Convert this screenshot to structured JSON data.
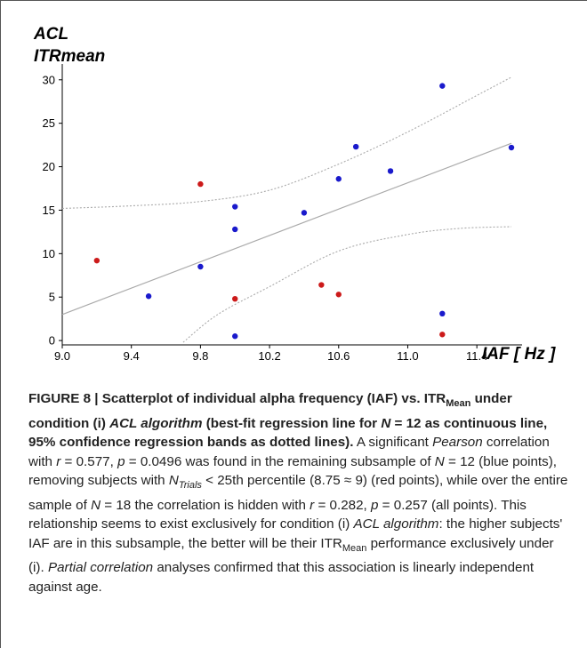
{
  "chart_data": {
    "type": "scatter",
    "title_lines": [
      "ACL",
      "ITRmean"
    ],
    "xlabel": "IAF [ Hz ]",
    "ylabel": "",
    "xlim": [
      9.0,
      11.6
    ],
    "ylim": [
      -0.5,
      31
    ],
    "xticks": [
      "9.0",
      "9.4",
      "9.8",
      "10.2",
      "10.6",
      "11.0",
      "11.4"
    ],
    "xtick_values": [
      9.0,
      9.4,
      9.8,
      10.2,
      10.6,
      11.0,
      11.4
    ],
    "yticks": [
      "0",
      "5",
      "10",
      "15",
      "20",
      "25",
      "30"
    ],
    "ytick_values": [
      0,
      5,
      10,
      15,
      20,
      25,
      30
    ],
    "grid": false,
    "colors": {
      "blue": "#1a1acc",
      "red": "#cc1a1a",
      "line": "#aaaaaa",
      "band": "#aaaaaa"
    },
    "series": [
      {
        "name": "N = 12",
        "color": "#1a1acc",
        "points": [
          {
            "x": 9.5,
            "y": 5.1
          },
          {
            "x": 9.8,
            "y": 8.5
          },
          {
            "x": 10.0,
            "y": 15.4
          },
          {
            "x": 10.0,
            "y": 12.8
          },
          {
            "x": 10.0,
            "y": 0.5
          },
          {
            "x": 10.4,
            "y": 14.7
          },
          {
            "x": 10.6,
            "y": 18.6
          },
          {
            "x": 10.7,
            "y": 22.3
          },
          {
            "x": 10.9,
            "y": 19.5
          },
          {
            "x": 11.2,
            "y": 29.3
          },
          {
            "x": 11.2,
            "y": 3.1
          },
          {
            "x": 11.6,
            "y": 22.2
          }
        ]
      },
      {
        "name": "N_Trials < 25th percentile",
        "color": "#cc1a1a",
        "points": [
          {
            "x": 9.2,
            "y": 9.2
          },
          {
            "x": 9.8,
            "y": 18.0
          },
          {
            "x": 10.0,
            "y": 4.8
          },
          {
            "x": 10.5,
            "y": 6.4
          },
          {
            "x": 10.6,
            "y": 5.3
          },
          {
            "x": 11.2,
            "y": 0.7
          }
        ]
      }
    ],
    "regression_line": {
      "x": [
        9.0,
        11.6
      ],
      "y": [
        3.0,
        22.7
      ]
    },
    "confidence_band_upper": [
      {
        "x": 9.0,
        "y": 15.2
      },
      {
        "x": 9.4,
        "y": 15.5
      },
      {
        "x": 9.8,
        "y": 16.0
      },
      {
        "x": 10.2,
        "y": 17.3
      },
      {
        "x": 10.6,
        "y": 20.3
      },
      {
        "x": 11.0,
        "y": 24.0
      },
      {
        "x": 11.4,
        "y": 28.2
      },
      {
        "x": 11.6,
        "y": 30.3
      }
    ],
    "confidence_band_lower": [
      {
        "x": 9.7,
        "y": -0.2
      },
      {
        "x": 9.9,
        "y": 3.0
      },
      {
        "x": 10.2,
        "y": 6.2
      },
      {
        "x": 10.6,
        "y": 10.3
      },
      {
        "x": 11.0,
        "y": 12.2
      },
      {
        "x": 11.3,
        "y": 12.9
      },
      {
        "x": 11.6,
        "y": 13.1
      }
    ]
  },
  "caption": {
    "title_a": "FIGURE 8 | Scatterplot of individual alpha frequency (IAF) vs. ITR",
    "title_sub": "Mean",
    "title_b": " under condition (i) ",
    "title_italic": "ACL algorithm",
    "title_c": " (best-fit regression line for ",
    "title_n12": "N",
    "title_d": " = 12 as continuous line, 95% confidence regression bands as dotted lines).",
    "body_1": " A significant ",
    "body_pearson": "Pearson",
    "body_2": " correlation with ",
    "body_r1": "r",
    "body_3": " = 0.577, ",
    "body_p1": "p",
    "body_4": " = 0.0496 was found in the remaining subsample of ",
    "body_n1": "N",
    "body_5": " = 12 (blue points), removing subjects with ",
    "body_ntrials": "N",
    "body_ntrials_sub": "Trials",
    "body_6": " < 25th percentile (8.75 ≈ 9) (red points), while over the entire sample of ",
    "body_n2": "N",
    "body_7": " = 18 the correlation is hidden with ",
    "body_r2": "r",
    "body_8": " = 0.282, ",
    "body_p2": "p",
    "body_9": " = 0.257 (all points). This relationship seems to exist exclusively for condition (i) ",
    "body_acl": "ACL algorithm",
    "body_10": ": the higher subjects' IAF are in this subsample, the better will be their ITR",
    "body_mean_sub": "Mean",
    "body_11": " performance exclusively under (i). ",
    "body_partial": "Partial correlation",
    "body_12": " analyses confirmed that this association is linearly independent against age."
  }
}
